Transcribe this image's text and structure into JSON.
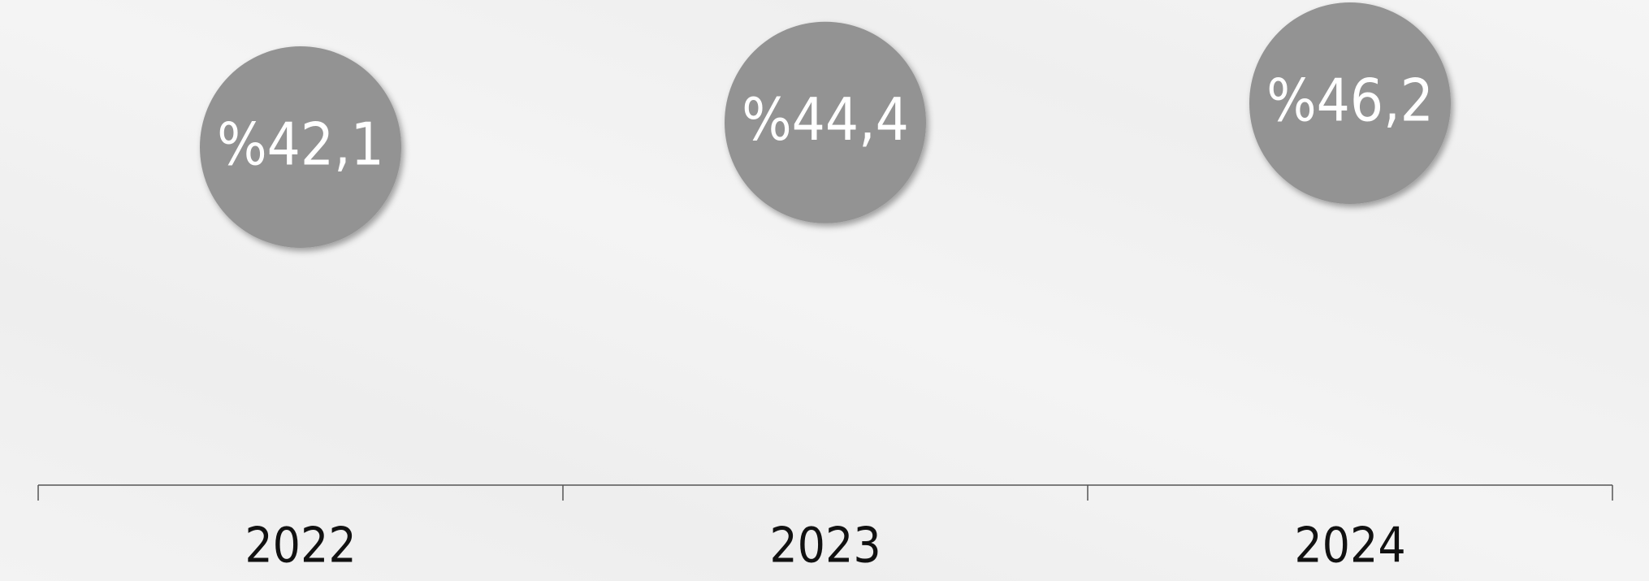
{
  "chart_data": {
    "type": "bubble",
    "categories": [
      "2022",
      "2023",
      "2024"
    ],
    "values": [
      42.1,
      44.4,
      46.2
    ],
    "value_labels": [
      "%42,1",
      "%44,4",
      "%46,2"
    ],
    "color": "#939393"
  }
}
